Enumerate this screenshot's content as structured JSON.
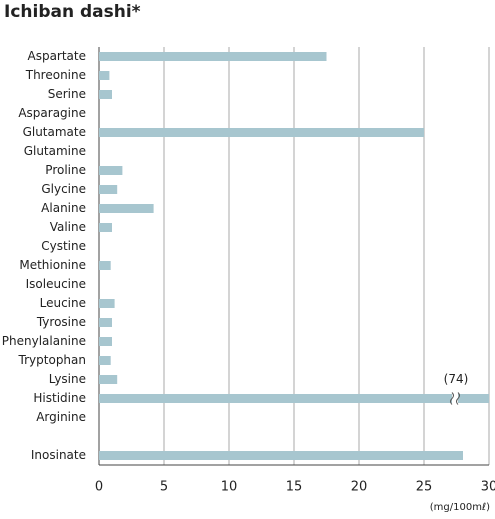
{
  "chart_data": {
    "type": "hbar",
    "title": "Ichiban dashi*",
    "x_label": "(mg/100mℓ)",
    "categories": [
      "Aspartate",
      "Threonine",
      "Serine",
      "Asparagine",
      "Glutamate",
      "Glutamine",
      "Proline",
      "Glycine",
      "Alanine",
      "Valine",
      "Cystine",
      "Methionine",
      "Isoleucine",
      "Leucine",
      "Tyrosine",
      "Phenylalanine",
      "Tryptophan",
      "Lysine",
      "Histidine",
      "Arginine",
      null,
      "Inosinate"
    ],
    "values": [
      17.5,
      0.8,
      1.0,
      0,
      25,
      0,
      1.8,
      1.4,
      4.2,
      1.0,
      0,
      0.9,
      0,
      1.2,
      1.0,
      1.0,
      0.9,
      1.4,
      74,
      0,
      null,
      28
    ],
    "value_labels": [
      null,
      null,
      null,
      null,
      null,
      null,
      null,
      null,
      null,
      null,
      null,
      null,
      null,
      null,
      null,
      null,
      null,
      null,
      "(74)",
      null,
      null,
      null
    ],
    "color": "#a7c6cf",
    "xlim": [
      0,
      30
    ],
    "xticks": [
      0,
      5,
      10,
      15,
      20,
      25,
      30
    ],
    "grid": true
  }
}
